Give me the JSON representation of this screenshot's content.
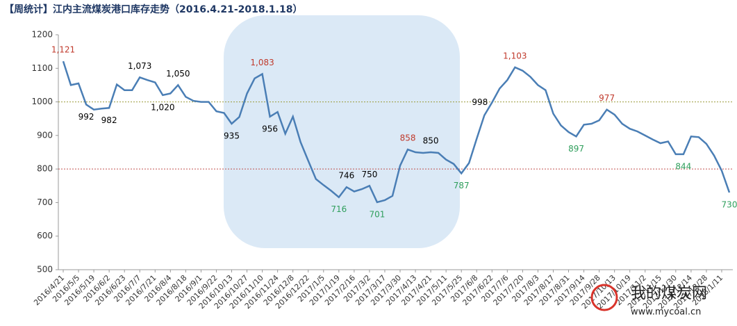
{
  "chart_data": {
    "type": "line",
    "title": "【周统计】江内主流煤炭港口库存走势（2016.4.21-2018.1.18）",
    "categories": [
      "2016/4/21",
      null,
      "2016/5/5",
      null,
      "2016/5/19",
      null,
      "2016/6/2",
      null,
      "2016/6/23",
      null,
      "2016/7/7",
      null,
      "2016/7/21",
      null,
      "2016/8/4",
      null,
      "2016/8/18",
      null,
      "2016/9/1",
      null,
      "2016/9/22",
      null,
      "2016/10/13",
      null,
      "2016/10/27",
      null,
      "2016/11/10",
      null,
      "2016/11/24",
      null,
      "2016/12/8",
      null,
      "2016/12/22",
      null,
      "2017/1/5",
      null,
      "2017/1/19",
      null,
      "2017/2/16",
      null,
      "2017/3/2",
      null,
      "2017/3/17",
      null,
      "2017/3/30",
      null,
      "2017/4/13",
      null,
      "2017/4/21",
      null,
      "2017/5/11",
      null,
      "2017/5/25",
      null,
      "2017/6/8",
      null,
      "2017/6/22",
      null,
      "2017/7/6",
      null,
      "2017/7/20",
      null,
      "2017/8/3",
      null,
      "2017/8/17",
      null,
      "2017/8/31",
      null,
      "2017/9/14",
      null,
      "2017/9/28",
      null,
      "2017/10/13",
      null,
      "2017/10/19",
      null,
      "2017/11/2",
      null,
      "2017/11/15",
      null,
      "2017/11/30",
      null,
      "2017/12/14",
      null,
      "2017/12/28",
      null,
      "2018/1/11",
      null
    ],
    "values": [
      1121,
      1050,
      1055,
      992,
      977,
      980,
      982,
      1052,
      1035,
      1035,
      1073,
      1065,
      1058,
      1020,
      1025,
      1050,
      1015,
      1003,
      1000,
      1000,
      972,
      967,
      935,
      955,
      1025,
      1070,
      1083,
      956,
      970,
      905,
      956,
      880,
      825,
      770,
      752,
      735,
      716,
      746,
      733,
      740,
      750,
      701,
      707,
      720,
      810,
      858,
      850,
      848,
      850,
      848,
      828,
      815,
      787,
      818,
      890,
      960,
      998,
      1040,
      1065,
      1103,
      1093,
      1075,
      1050,
      1035,
      965,
      930,
      910,
      897,
      932,
      935,
      945,
      977,
      962,
      935,
      920,
      912,
      900,
      888,
      877,
      882,
      844,
      844,
      897,
      895,
      875,
      840,
      795,
      730
    ],
    "color": "#4a7eb5",
    "ylim": [
      500,
      1200
    ],
    "yticks": [
      500,
      600,
      700,
      800,
      900,
      1000,
      1100,
      1200
    ],
    "grid": false,
    "reference_lines": [
      {
        "value": 1000,
        "color": "#9a9a3a"
      },
      {
        "value": 800,
        "color": "#c0504d"
      }
    ],
    "annotations": [
      {
        "index": 0,
        "label": "1,121",
        "color": "#c0392b",
        "position": "above"
      },
      {
        "index": 3,
        "label": "992",
        "color": "#000000",
        "position": "below"
      },
      {
        "index": 6,
        "label": "982",
        "color": "#000000",
        "position": "below"
      },
      {
        "index": 10,
        "label": "1,073",
        "color": "#000000",
        "position": "above"
      },
      {
        "index": 13,
        "label": "1,020",
        "color": "#000000",
        "position": "below"
      },
      {
        "index": 15,
        "label": "1,050",
        "color": "#000000",
        "position": "above"
      },
      {
        "index": 22,
        "label": "935",
        "color": "#000000",
        "position": "below"
      },
      {
        "index": 26,
        "label": "1,083",
        "color": "#c0392b",
        "position": "above"
      },
      {
        "index": 27,
        "label": "956",
        "color": "#000000",
        "position": "below"
      },
      {
        "index": 36,
        "label": "716",
        "color": "#2e9e5b",
        "position": "below"
      },
      {
        "index": 37,
        "label": "746",
        "color": "#000000",
        "position": "above"
      },
      {
        "index": 40,
        "label": "750",
        "color": "#000000",
        "position": "above"
      },
      {
        "index": 41,
        "label": "701",
        "color": "#2e9e5b",
        "position": "below"
      },
      {
        "index": 45,
        "label": "858",
        "color": "#c0392b",
        "position": "above"
      },
      {
        "index": 48,
        "label": "850",
        "color": "#000000",
        "position": "above"
      },
      {
        "index": 52,
        "label": "787",
        "color": "#2e9e5b",
        "position": "below"
      },
      {
        "index": 56,
        "label": "998",
        "color": "#000000",
        "position": "left"
      },
      {
        "index": 59,
        "label": "1,103",
        "color": "#c0392b",
        "position": "above"
      },
      {
        "index": 67,
        "label": "897",
        "color": "#2e9e5b",
        "position": "below"
      },
      {
        "index": 71,
        "label": "977",
        "color": "#c0392b",
        "position": "above"
      },
      {
        "index": 81,
        "label": "844",
        "color": "#2e9e5b",
        "position": "below"
      },
      {
        "index": 87,
        "label": "730",
        "color": "#2e9e5b",
        "position": "below"
      }
    ]
  },
  "watermark": {
    "site": "我的煤炭网",
    "url": "www.mycoal.cn"
  }
}
